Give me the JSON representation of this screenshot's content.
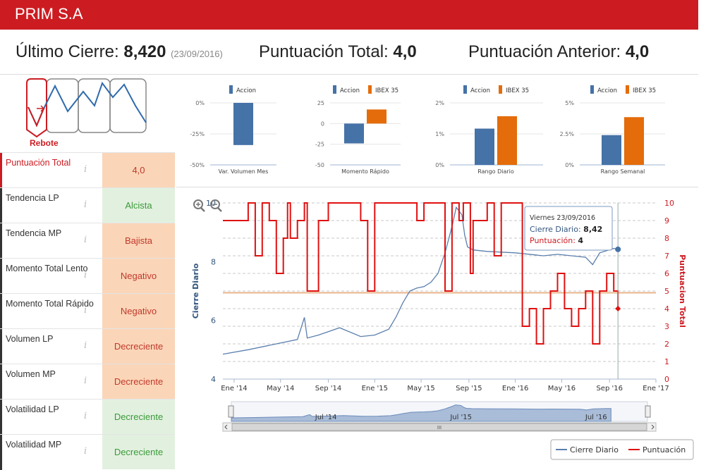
{
  "company": {
    "name": "PRIM S.A"
  },
  "summary": {
    "last_close_label": "Último Cierre:",
    "last_close_value": "8,420",
    "last_close_date": "(23/09/2016)",
    "total_score_label": "Puntuación Total:",
    "total_score_value": "4,0",
    "previous_score_label": "Puntuación Anterior:",
    "previous_score_value": "4,0"
  },
  "pattern": {
    "label": "Rebote"
  },
  "indicators": [
    {
      "name": "Puntuación Total",
      "value": "4,0",
      "tone": "neg"
    },
    {
      "name": "Tendencia LP",
      "value": "Alcista",
      "tone": "pos"
    },
    {
      "name": "Tendencia MP",
      "value": "Bajista",
      "tone": "neg"
    },
    {
      "name": "Momento Total Lento",
      "value": "Negativo",
      "tone": "neg"
    },
    {
      "name": "Momento Total Rápido",
      "value": "Negativo",
      "tone": "neg"
    },
    {
      "name": "Volumen LP",
      "value": "Decreciente",
      "tone": "neg"
    },
    {
      "name": "Volumen MP",
      "value": "Decreciente",
      "tone": "neg"
    },
    {
      "name": "Volatilidad LP",
      "value": "Decreciente",
      "tone": "pos"
    },
    {
      "name": "Volatilidad MP",
      "value": "Decreciente",
      "tone": "pos"
    }
  ],
  "info_glyph": "i",
  "colors": {
    "accion": "#4572a7",
    "ibex": "#e46c0a",
    "brand": "#cc1c22",
    "price": "#5b7fad"
  },
  "chart_data": [
    {
      "type": "bar",
      "title": "Var. Volumen Mes",
      "legend": [
        "Accion"
      ],
      "yticks": [
        "0%",
        "-25%",
        "-50%"
      ],
      "ylim": [
        -50,
        0
      ],
      "series": [
        {
          "name": "Accion",
          "values": [
            -34
          ]
        }
      ]
    },
    {
      "type": "bar",
      "title": "Momento Rápido",
      "legend": [
        "Accion",
        "IBEX 35"
      ],
      "yticks": [
        "25",
        "0",
        "-25",
        "-50"
      ],
      "ylim": [
        -50,
        25
      ],
      "series": [
        {
          "name": "Accion",
          "values": [
            -24
          ]
        },
        {
          "name": "IBEX 35",
          "values": [
            17
          ]
        }
      ]
    },
    {
      "type": "bar",
      "title": "Rango Diario",
      "legend": [
        "Accion",
        "IBEX 35"
      ],
      "yticks": [
        "2%",
        "1%",
        "0%"
      ],
      "ylim": [
        0,
        2
      ],
      "series": [
        {
          "name": "Accion",
          "values": [
            1.17
          ]
        },
        {
          "name": "IBEX 35",
          "values": [
            1.57
          ]
        }
      ]
    },
    {
      "type": "bar",
      "title": "Rango Semanal",
      "legend": [
        "Accion",
        "IBEX 35"
      ],
      "yticks": [
        "5%",
        "2.5%",
        "0%"
      ],
      "ylim": [
        0,
        5
      ],
      "series": [
        {
          "name": "Accion",
          "values": [
            2.4
          ]
        },
        {
          "name": "IBEX 35",
          "values": [
            3.85
          ]
        }
      ]
    },
    {
      "type": "line",
      "xlabels": [
        "Ene '14",
        "May '14",
        "Sep '14",
        "Ene '15",
        "May '15",
        "Sep '15",
        "Ene '16",
        "May '16",
        "Sep '16",
        "Ene '17"
      ],
      "xlim": [
        2013.92,
        2017.0
      ],
      "x_ticks": [
        2014.0,
        2014.33,
        2014.67,
        2015.0,
        2015.33,
        2015.67,
        2016.0,
        2016.33,
        2016.67,
        2017.0
      ],
      "y_left": {
        "label": "Cierre Diario",
        "ticks": [
          "4",
          "6",
          "8",
          "10"
        ],
        "lim": [
          4,
          10
        ]
      },
      "y_right": {
        "label": "Puntuacion Total",
        "ticks": [
          "0",
          "1",
          "2",
          "3",
          "4",
          "5",
          "6",
          "7",
          "8",
          "9",
          "10"
        ],
        "lim": [
          0,
          10
        ]
      },
      "threshold": 4.9,
      "series": [
        {
          "name": "Cierre Diario",
          "x": [
            2013.92,
            2014.1,
            2014.3,
            2014.45,
            2014.5,
            2014.52,
            2014.6,
            2014.75,
            2014.9,
            2015.0,
            2015.1,
            2015.15,
            2015.2,
            2015.25,
            2015.3,
            2015.35,
            2015.4,
            2015.45,
            2015.5,
            2015.55,
            2015.58,
            2015.62,
            2015.64,
            2015.66,
            2015.7,
            2015.8,
            2016.0,
            2016.2,
            2016.3,
            2016.4,
            2016.5,
            2016.55,
            2016.6,
            2016.7,
            2016.73
          ],
          "values": [
            4.85,
            5.0,
            5.2,
            5.35,
            6.1,
            5.4,
            5.5,
            5.75,
            5.45,
            5.5,
            5.7,
            6.1,
            6.6,
            7.0,
            7.1,
            7.15,
            7.3,
            7.6,
            8.3,
            9.2,
            9.85,
            9.6,
            8.9,
            8.5,
            8.4,
            8.35,
            8.3,
            8.2,
            8.25,
            8.2,
            8.15,
            7.9,
            8.3,
            8.45,
            8.42
          ]
        },
        {
          "name": "Puntuación",
          "x": [
            2013.92,
            2014.1,
            2014.15,
            2014.2,
            2014.25,
            2014.3,
            2014.35,
            2014.38,
            2014.4,
            2014.45,
            2014.5,
            2014.52,
            2014.6,
            2014.67,
            2014.75,
            2014.8,
            2014.9,
            2014.95,
            2015.0,
            2015.1,
            2015.2,
            2015.3,
            2015.35,
            2015.45,
            2015.5,
            2015.55,
            2015.6,
            2015.63,
            2015.68,
            2015.7,
            2015.8,
            2015.85,
            2015.9,
            2015.95,
            2016.0,
            2016.05,
            2016.1,
            2016.15,
            2016.2,
            2016.25,
            2016.3,
            2016.35,
            2016.4,
            2016.45,
            2016.5,
            2016.55,
            2016.6,
            2016.65,
            2016.7,
            2016.73
          ],
          "values": [
            9,
            10,
            7,
            10,
            9,
            6,
            8,
            10,
            8,
            9,
            10,
            5,
            9,
            10,
            10,
            10,
            9,
            5,
            10,
            10,
            10,
            9,
            10,
            10,
            5,
            10,
            9,
            10,
            6,
            9,
            10,
            7,
            10,
            10,
            10,
            3,
            4,
            2,
            4,
            5,
            6,
            4,
            3,
            4,
            5,
            2,
            5,
            6,
            5,
            4
          ]
        }
      ],
      "legend": [
        "Cierre Diario",
        "Puntuación"
      ]
    }
  ],
  "tooltip": {
    "date": "Viernes 23/09/2016",
    "close_label": "Cierre Diario:",
    "close_value": "8,42",
    "score_label": "Puntuación:",
    "score_value": "4"
  },
  "navigator": {
    "labels": [
      "Jul '14",
      "Jul '15",
      "Jul '16"
    ],
    "grip": "III"
  }
}
